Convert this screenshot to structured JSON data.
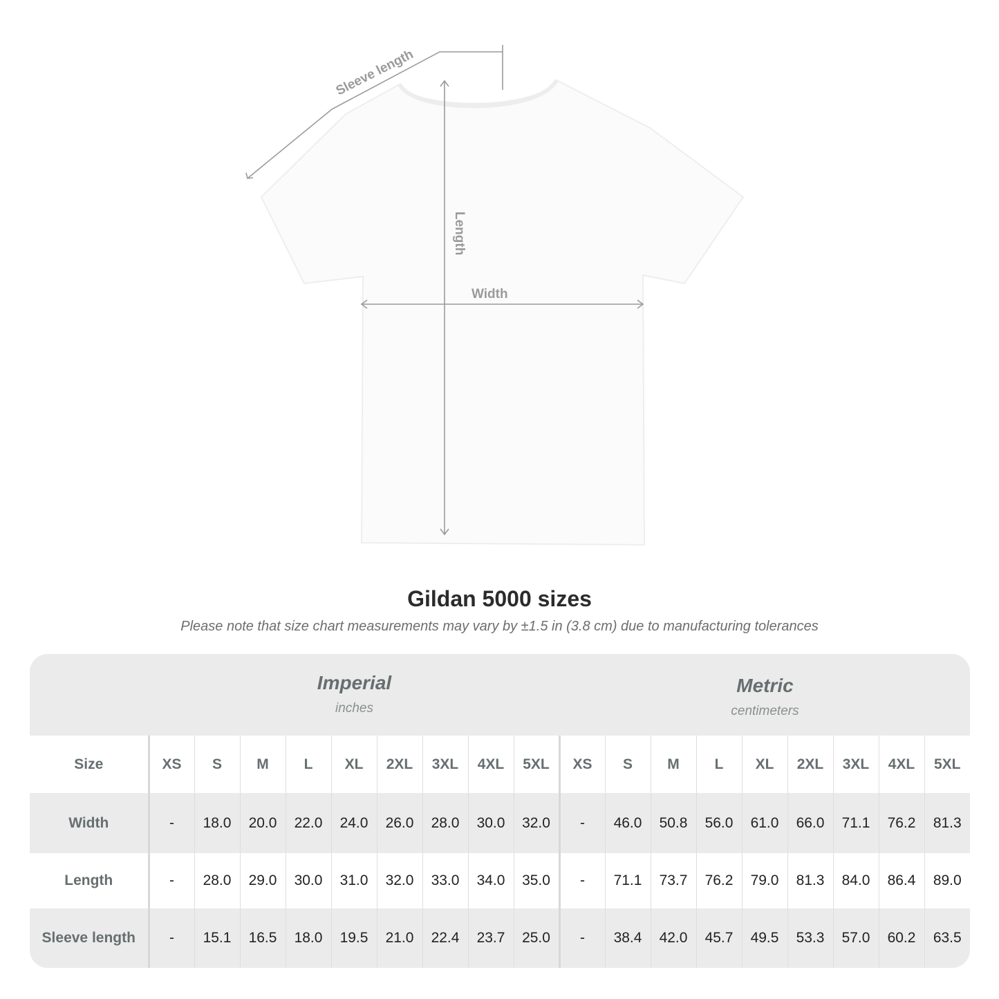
{
  "diagram": {
    "labels": {
      "sleeve": "Sleeve length",
      "length": "Length",
      "width": "Width"
    },
    "line_color": "#9a9a9a"
  },
  "title": "Gildan 5000 sizes",
  "subtitle": "Please note that size chart measurements may vary by ±1.5 in (3.8 cm) due to manufacturing tolerances",
  "table": {
    "imperial": {
      "title": "Imperial",
      "unit": "inches"
    },
    "metric": {
      "title": "Metric",
      "unit": "centimeters"
    },
    "size_label": "Size",
    "sizes": [
      "XS",
      "S",
      "M",
      "L",
      "XL",
      "2XL",
      "3XL",
      "4XL",
      "5XL"
    ],
    "rows": [
      {
        "label": "Width",
        "imperial": [
          "-",
          "18.0",
          "20.0",
          "22.0",
          "24.0",
          "26.0",
          "28.0",
          "30.0",
          "32.0"
        ],
        "metric": [
          "-",
          "46.0",
          "50.8",
          "56.0",
          "61.0",
          "66.0",
          "71.1",
          "76.2",
          "81.3"
        ]
      },
      {
        "label": "Length",
        "imperial": [
          "-",
          "28.0",
          "29.0",
          "30.0",
          "31.0",
          "32.0",
          "33.0",
          "34.0",
          "35.0"
        ],
        "metric": [
          "-",
          "71.1",
          "73.7",
          "76.2",
          "79.0",
          "81.3",
          "84.0",
          "86.4",
          "89.0"
        ]
      },
      {
        "label": "Sleeve length",
        "imperial": [
          "-",
          "15.1",
          "16.5",
          "18.0",
          "19.5",
          "21.0",
          "22.4",
          "23.7",
          "25.0"
        ],
        "metric": [
          "-",
          "38.4",
          "42.0",
          "45.7",
          "49.5",
          "53.3",
          "57.0",
          "60.2",
          "63.5"
        ]
      }
    ]
  }
}
